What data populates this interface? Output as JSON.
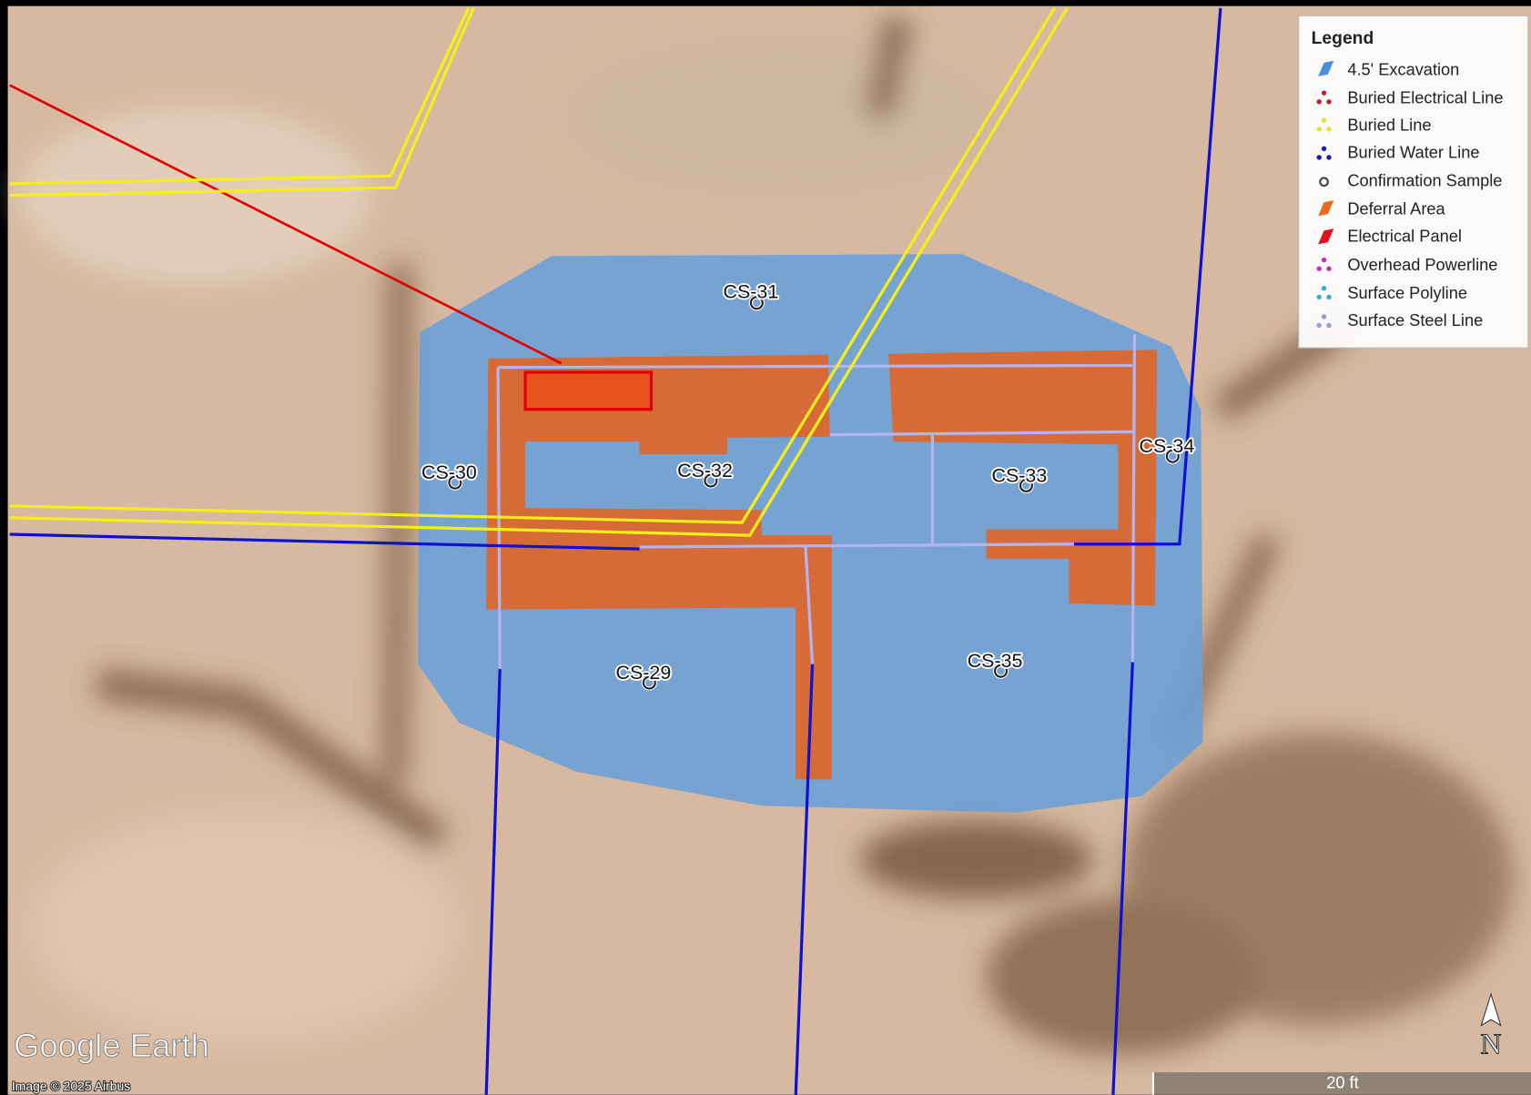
{
  "legend": {
    "title": "Legend",
    "items": [
      "4.5' Excavation",
      "Buried Electrical Line",
      "Buried Line",
      "Buried Water Line",
      "Confirmation Sample",
      "Deferral Area",
      "Electrical Panel",
      "Overhead Powerline",
      "Surface Polyline",
      "Surface Steel Line"
    ]
  },
  "samples": [
    "CS-31",
    "CS-30",
    "CS-32",
    "CS-33",
    "CS-34",
    "CS-29",
    "CS-35"
  ],
  "brand": "Google Earth",
  "attribution": "Image © 2025 Airbus",
  "scale_label": "20 ft",
  "north_label": "N"
}
